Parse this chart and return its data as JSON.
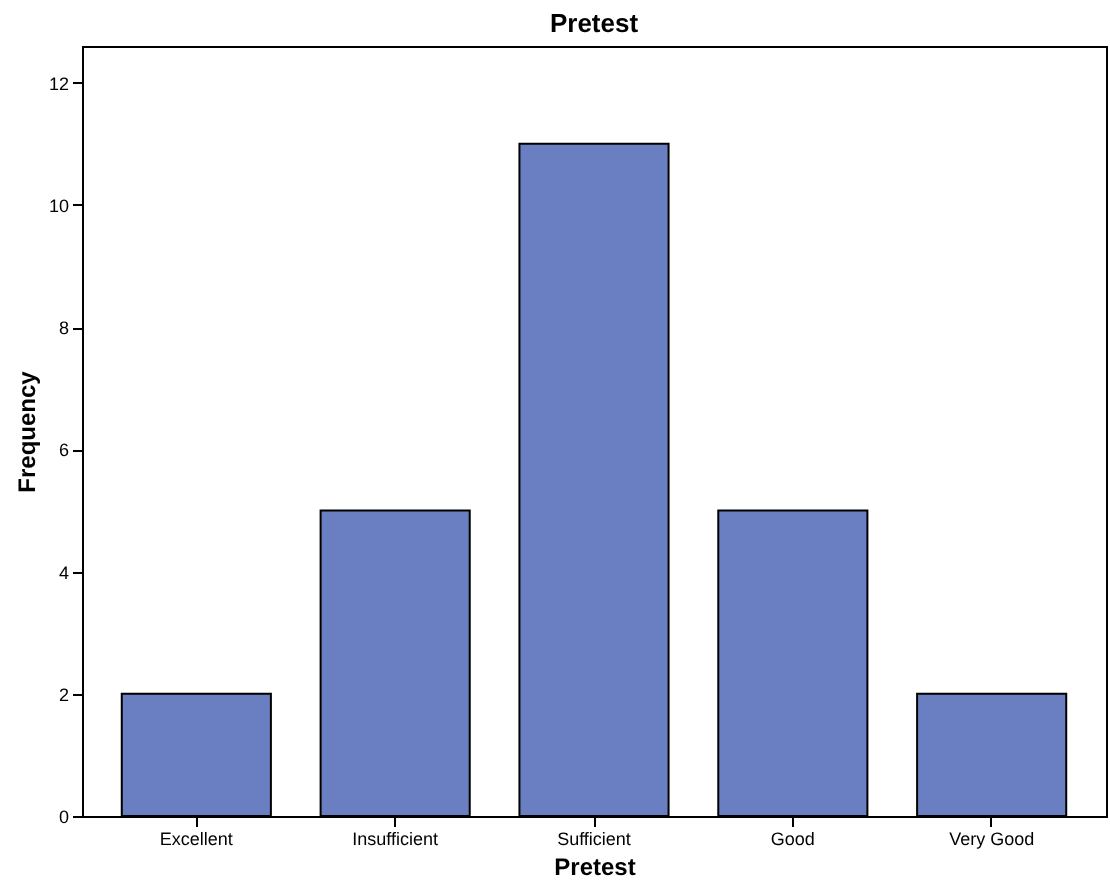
{
  "chart_data": {
    "type": "bar",
    "title": "Pretest",
    "xlabel": "Pretest",
    "ylabel": "Frequency",
    "categories": [
      "Excellent",
      "Insufficient",
      "Sufficient",
      "Good",
      "Very Good"
    ],
    "values": [
      2,
      5,
      11,
      5,
      2
    ],
    "color": "#6a7fc1",
    "ylim": [
      0,
      12.6
    ],
    "yticks": [
      0,
      2,
      4,
      6,
      8,
      10,
      12
    ],
    "grid": false
  }
}
